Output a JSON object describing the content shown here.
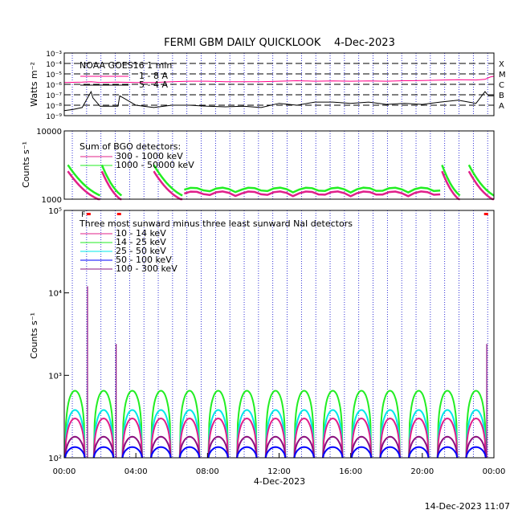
{
  "title": "FERMI GBM DAILY QUICKLOOK    4-Dec-2023",
  "footer_timestamp": "14-Dec-2023 11:07",
  "colors": {
    "black": "#000000",
    "magenta": "#ff0088",
    "pink": "#e0208a",
    "green": "#22ee22",
    "cyan": "#00e8e8",
    "blue": "#0000ff",
    "purple": "#8a1080",
    "red": "#ff0000",
    "grid_blue": "#0000cc"
  },
  "chart_data": [
    {
      "type": "line",
      "panel": "goes",
      "ylabel": "Watts m⁻²",
      "y_scale": "log",
      "ylim": [
        1e-09,
        0.001
      ],
      "y_ticks": [
        "10⁻³",
        "10⁻⁴",
        "10⁻⁵",
        "10⁻⁶",
        "10⁻⁷",
        "10⁻⁸",
        "10⁻⁹"
      ],
      "flare_classes": [
        "X",
        "M",
        "C",
        "B",
        "A"
      ],
      "legend_title": "NOAA GOES16 1 min",
      "series": [
        {
          "name": "1 - 8 A",
          "color": "#ff0088",
          "x_hours": [
            0,
            1,
            1.5,
            2,
            3,
            4,
            5,
            6,
            7,
            8,
            9,
            10,
            11,
            12,
            13,
            14,
            15,
            16,
            17,
            18,
            19,
            20,
            21,
            22,
            23,
            23.5,
            23.8,
            24
          ],
          "values": [
            1.5e-06,
            1.6e-06,
            1.8e-06,
            1.5e-06,
            1.6e-06,
            1.5e-06,
            1.5e-06,
            1.8e-06,
            2e-06,
            2e-06,
            1.8e-06,
            1.8e-06,
            1.8e-06,
            2e-06,
            2.2e-06,
            2e-06,
            2.1e-06,
            2e-06,
            2.1e-06,
            2e-06,
            2.2e-06,
            2.3e-06,
            2.5e-06,
            2.8e-06,
            2.6e-06,
            3e-06,
            5e-06,
            6e-06
          ]
        },
        {
          "name": "5 - 4 A",
          "color": "#000000",
          "x_hours": [
            0,
            0.5,
            1,
            1.5,
            1.6,
            2,
            3,
            3.1,
            4,
            5,
            6,
            7,
            8,
            9,
            10,
            11,
            12,
            13,
            14,
            15,
            16,
            17,
            18,
            19,
            20,
            21,
            22,
            23,
            23.5,
            23.7,
            24
          ],
          "values": [
            3e-09,
            4e-09,
            6e-09,
            2e-07,
            5e-08,
            8e-09,
            8e-09,
            8e-08,
            1e-08,
            6e-09,
            1e-08,
            1e-08,
            8e-09,
            7e-09,
            8e-09,
            6e-09,
            1.5e-08,
            1e-08,
            2e-08,
            2e-08,
            1.5e-08,
            2e-08,
            1.2e-08,
            1.5e-08,
            1.2e-08,
            2e-08,
            3e-08,
            1.5e-08,
            2e-07,
            8e-08,
            8e-08
          ]
        }
      ]
    },
    {
      "type": "line",
      "panel": "bgo",
      "ylabel": "Counts s⁻¹",
      "y_scale": "log",
      "ylim": [
        1000,
        10000
      ],
      "y_ticks": [
        "10000",
        "1000"
      ],
      "legend_title": "Sum of BGO detectors:",
      "series": [
        {
          "name": "300 - 1000 keV",
          "color": "#e0208a",
          "level_at_low": 1100,
          "level_at_high": 1800
        },
        {
          "name": "1000 - 50000 keV",
          "color": "#22ee22",
          "level_at_low": 1250,
          "level_at_high": 2300
        }
      ]
    },
    {
      "type": "line",
      "panel": "nai",
      "ylabel": "Counts s⁻¹",
      "y_scale": "log",
      "ylim": [
        100,
        100000
      ],
      "y_ticks": [
        "10⁵",
        "10⁴",
        "10³",
        "10²"
      ],
      "legend_title": "Three most sunward minus three least sunward NaI detectors",
      "series": [
        {
          "name": "10 - 14 keV",
          "color": "#e0208a",
          "peak": 300
        },
        {
          "name": "14 - 25 keV",
          "color": "#22ee22",
          "peak": 650
        },
        {
          "name": "25 - 50 keV",
          "color": "#00e8e8",
          "peak": 380
        },
        {
          "name": "50 - 100 keV",
          "color": "#0000ff",
          "peak": 135
        },
        {
          "name": "100 - 300 keV",
          "color": "#8a1080",
          "peak": 180
        }
      ],
      "flare_markers": [
        "F"
      ],
      "x_ticks": [
        "00:00",
        "04:00",
        "08:00",
        "12:00",
        "16:00",
        "20:00",
        "00:00"
      ],
      "xlabel": "4-Dec-2023",
      "xlim_hours": [
        0,
        24
      ]
    }
  ]
}
